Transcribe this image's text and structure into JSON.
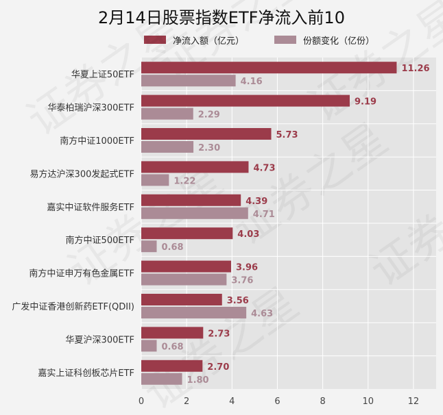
{
  "title": "2月14日股票指数ETF净流入前10",
  "colors": {
    "series1": "#9b3b4a",
    "series2": "#ab8b96",
    "plot_bg": "#e4e4e4",
    "grid": "#ffffff"
  },
  "chart_data": {
    "type": "bar",
    "orientation": "horizontal",
    "title": "2月14日股票指数ETF净流入前10",
    "categories": [
      "华夏上证50ETF",
      "华泰柏瑞沪深300ETF",
      "南方中证1000ETF",
      "易方达沪深300发起式ETF",
      "嘉实中证软件服务ETF",
      "南方中证500ETF",
      "南方中证申万有色金属ETF",
      "广发中证香港创新药ETF(QDII)",
      "华夏沪深300ETF",
      "嘉实上证科创板芯片ETF"
    ],
    "series": [
      {
        "name": "净流入额（亿元）",
        "values": [
          11.26,
          9.19,
          5.73,
          4.73,
          4.39,
          4.03,
          3.96,
          3.56,
          2.73,
          2.7
        ],
        "labels": [
          "11.26",
          "9.19",
          "5.73",
          "4.73",
          "4.39",
          "4.03",
          "3.96",
          "3.56",
          "2.73",
          "2.70"
        ]
      },
      {
        "name": "份额变化（亿份）",
        "values": [
          4.16,
          2.29,
          2.3,
          1.22,
          4.71,
          0.68,
          3.76,
          4.63,
          0.68,
          1.8
        ],
        "labels": [
          "4.16",
          "2.29",
          "2.30",
          "1.22",
          "4.71",
          "0.68",
          "3.76",
          "4.63",
          "0.68",
          "1.80"
        ]
      }
    ],
    "xlim": [
      0,
      13
    ],
    "xticks": [
      "0",
      "2",
      "4",
      "6",
      "8",
      "10",
      "12"
    ],
    "grid": true,
    "legend_position": "top"
  }
}
